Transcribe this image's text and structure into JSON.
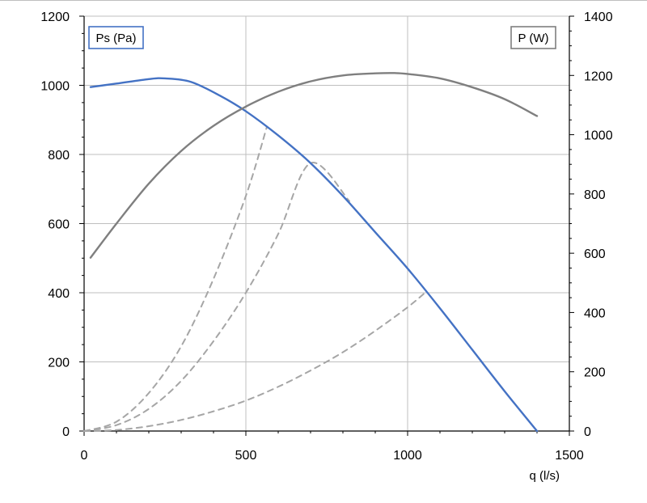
{
  "chart_data": {
    "type": "line",
    "xlabel": "q (l/s)",
    "x_ticks": [
      "0",
      "500",
      "1000",
      "1500"
    ],
    "xlim": [
      0,
      1500
    ],
    "left_axis": {
      "label": "Ps (Pa)",
      "ylim": [
        0,
        1200
      ],
      "ticks": [
        "0",
        "200",
        "400",
        "600",
        "800",
        "1000",
        "1200"
      ]
    },
    "right_axis": {
      "label": "P (W)",
      "ylim": [
        0,
        1400
      ],
      "ticks": [
        "0",
        "200",
        "400",
        "600",
        "800",
        "1000",
        "1200",
        "1400"
      ]
    },
    "grid": true,
    "series": [
      {
        "name": "Ps (Pa)",
        "axis": "left",
        "color": "#4472C4",
        "style": "solid",
        "x": [
          20,
          100,
          200,
          250,
          330,
          420,
          500,
          600,
          700,
          800,
          900,
          1000,
          1100,
          1200,
          1300,
          1400
        ],
        "y": [
          995,
          1005,
          1018,
          1020,
          1010,
          970,
          925,
          855,
          775,
          680,
          575,
          470,
          355,
          235,
          115,
          0
        ]
      },
      {
        "name": "P (W)",
        "axis": "right",
        "color": "#7F7F7F",
        "style": "solid",
        "x": [
          20,
          100,
          200,
          300,
          400,
          500,
          600,
          700,
          800,
          900,
          960,
          1000,
          1100,
          1200,
          1300,
          1400
        ],
        "y": [
          585,
          700,
          835,
          945,
          1030,
          1095,
          1145,
          1180,
          1200,
          1207,
          1208,
          1205,
          1190,
          1160,
          1120,
          1063
        ]
      },
      {
        "name": "",
        "axis": "left",
        "color": "#A6A6A6",
        "style": "dashed",
        "x": [
          0,
          100,
          200,
          300,
          400,
          500,
          565
        ],
        "y": [
          0,
          27,
          110,
          245,
          440,
          680,
          880
        ]
      },
      {
        "name": "",
        "axis": "left",
        "color": "#A6A6A6",
        "style": "dashed",
        "x": [
          0,
          100,
          200,
          300,
          400,
          500,
          600,
          700,
          820
        ],
        "y": [
          0,
          17,
          64,
          145,
          260,
          400,
          570,
          775,
          665
        ]
      },
      {
        "name": "",
        "axis": "left",
        "color": "#A6A6A6",
        "style": "dashed",
        "x": [
          0,
          100,
          200,
          300,
          400,
          500,
          600,
          700,
          800,
          900,
          1000,
          1060
        ],
        "y": [
          0,
          3,
          14,
          32,
          57,
          88,
          128,
          175,
          228,
          290,
          358,
          405
        ]
      }
    ]
  }
}
